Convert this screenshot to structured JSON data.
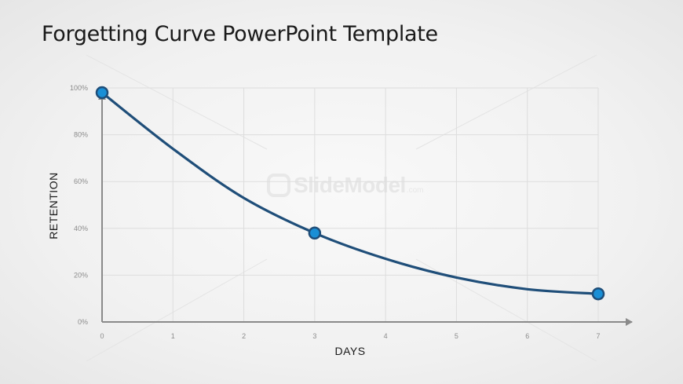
{
  "slide": {
    "title": "Forgetting Curve PowerPoint Template"
  },
  "watermark": {
    "text": "SlideModel",
    "suffix": ".com"
  },
  "colors": {
    "curve": "#1f4e79",
    "marker_fill": "#1a8fd6",
    "marker_stroke": "#1f4e79",
    "axis": "#8a8a8a",
    "grid": "#dddddd"
  },
  "chart_data": {
    "type": "line",
    "title": "",
    "xlabel": "DAYS",
    "ylabel": "RETENTION",
    "x_ticks": [
      0,
      1,
      2,
      3,
      4,
      5,
      6,
      7
    ],
    "x_tick_labels": [
      "0",
      "1",
      "2",
      "3",
      "4",
      "5",
      "6",
      "7"
    ],
    "y_ticks": [
      0,
      20,
      40,
      60,
      80,
      100
    ],
    "y_tick_labels": [
      "0%",
      "20%",
      "40%",
      "60%",
      "80%",
      "100%"
    ],
    "xlim": [
      0,
      7
    ],
    "ylim": [
      0,
      100
    ],
    "grid": true,
    "series": [
      {
        "x": [
          0,
          1,
          2,
          3,
          4,
          5,
          6,
          7
        ],
        "y": [
          98,
          74,
          53,
          38,
          27,
          19,
          14,
          12
        ]
      }
    ],
    "markers": [
      {
        "x": 0,
        "y": 98
      },
      {
        "x": 3,
        "y": 38
      },
      {
        "x": 7,
        "y": 12
      }
    ]
  }
}
